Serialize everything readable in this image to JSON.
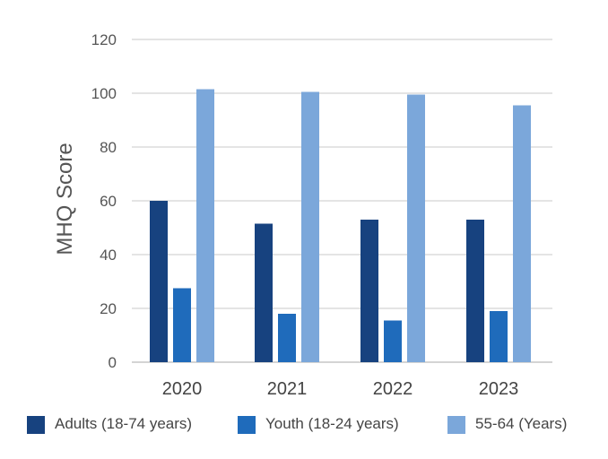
{
  "chart_data": {
    "type": "bar",
    "title": "",
    "xlabel": "",
    "ylabel": "MHQ Score",
    "ylim": [
      0,
      120
    ],
    "yticks": [
      0,
      20,
      40,
      60,
      80,
      100,
      120
    ],
    "grid": true,
    "legend_position": "bottom",
    "categories": [
      "2020",
      "2021",
      "2022",
      "2023"
    ],
    "series": [
      {
        "name": "Adults (18-74 years)",
        "color": "#17427f",
        "values": [
          60,
          51.5,
          53,
          53
        ]
      },
      {
        "name": "Youth (18-24 years)",
        "color": "#1f6bbb",
        "values": [
          27.5,
          18,
          15.5,
          19
        ]
      },
      {
        "name": "55-64 (Years)",
        "color": "#7ba7da",
        "values": [
          101.5,
          100.5,
          99.5,
          95.5
        ]
      }
    ]
  }
}
